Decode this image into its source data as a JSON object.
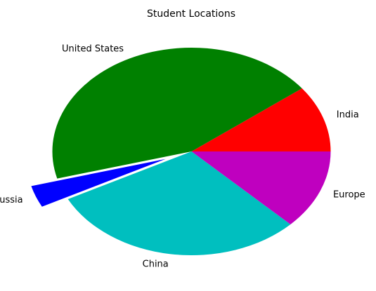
{
  "chart_data": {
    "type": "pie",
    "title": "Student Locations",
    "categories": [
      "India",
      "United States",
      "Russia",
      "China",
      "Europe"
    ],
    "values": [
      10.4,
      43.8,
      3.4,
      30.0,
      12.4
    ],
    "colors": [
      "#ff0000",
      "#008000",
      "#0000ff",
      "#00bfbf",
      "#bf00bf"
    ],
    "explode": [
      0,
      0,
      0.2,
      0,
      0
    ],
    "start_angle": 0,
    "direction": "counterclockwise",
    "legend": "none"
  }
}
